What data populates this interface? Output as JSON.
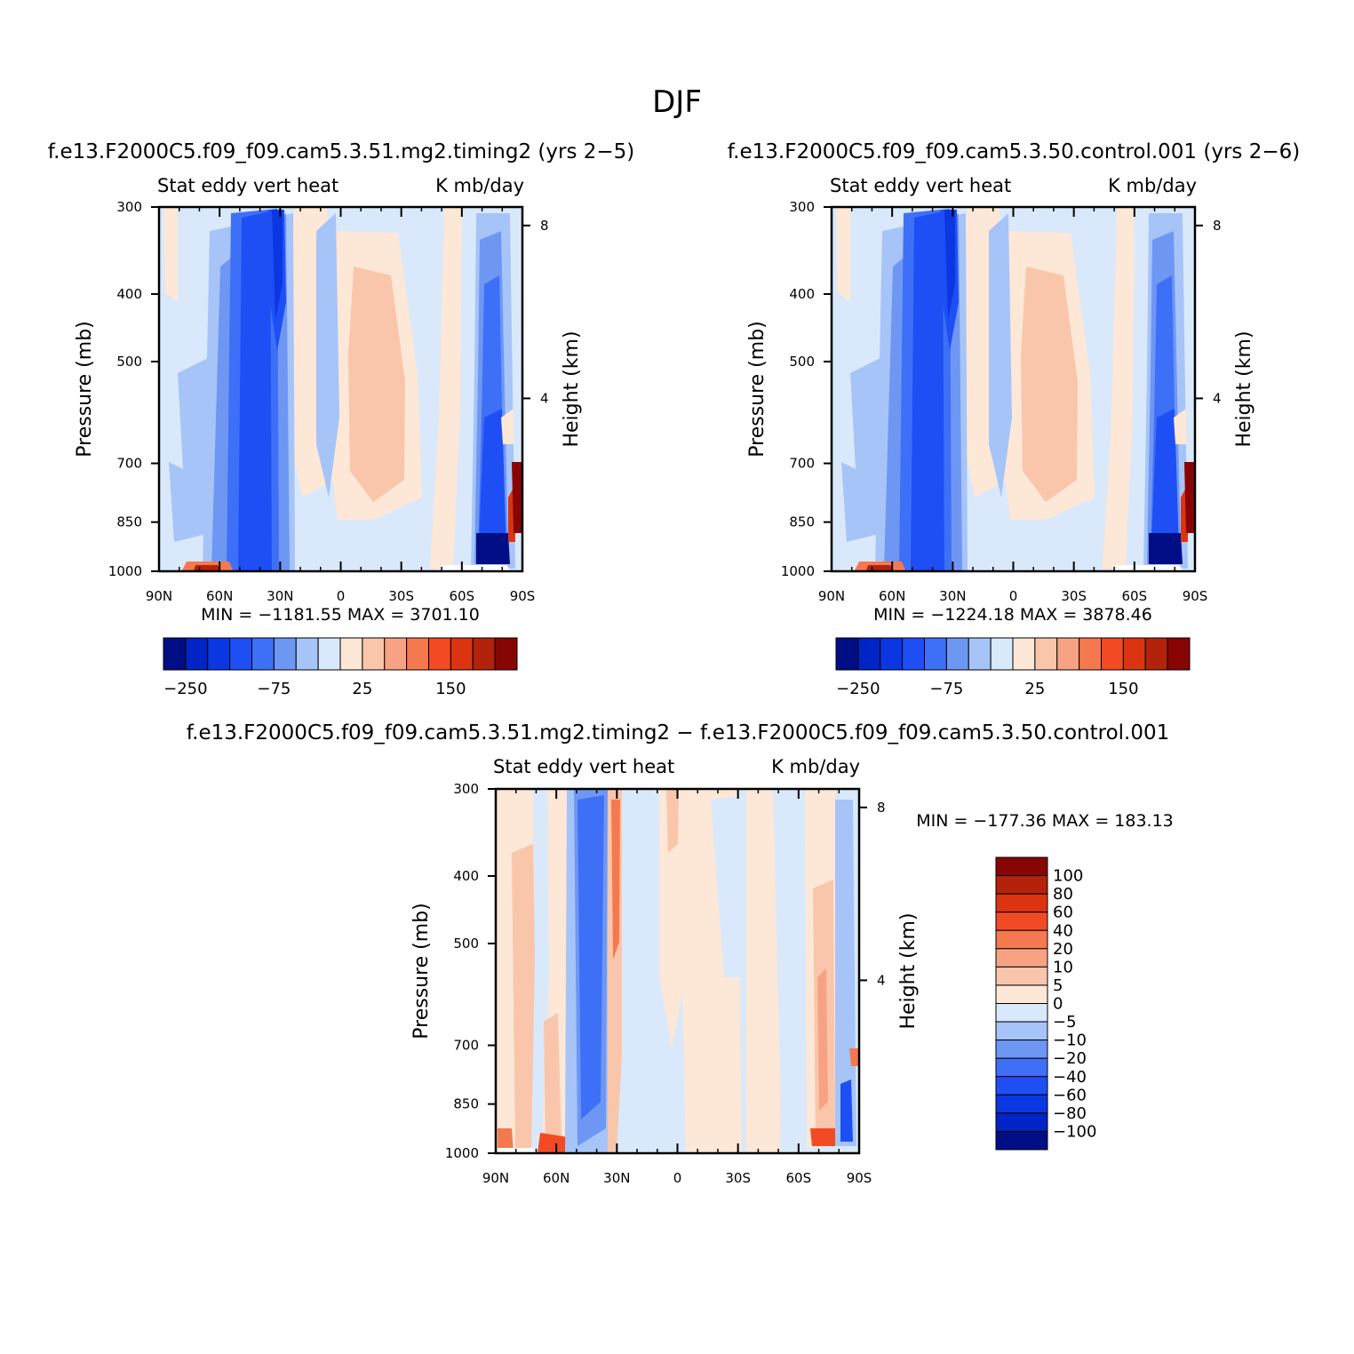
{
  "page_title": "DJF",
  "colors": {
    "scale": [
      "#000e86",
      "#0024c5",
      "#0a37e2",
      "#1e4ff5",
      "#3e6ff7",
      "#6e97f4",
      "#a6c4f8",
      "#d9e9fb",
      "#fde7d6",
      "#f9c6ac",
      "#f7a383",
      "#f5794f",
      "#f24b23",
      "#dc3410",
      "#b3230b",
      "#880505"
    ]
  },
  "chart_data": [
    {
      "id": "panel1",
      "type": "heatmap",
      "case_title": "f.e13.F2000C5.f09_f09.cam5.3.51.mg2.timing2 (yrs 2−5)",
      "left_string": "Stat eddy vert heat",
      "right_string": "K mb/day",
      "ylabel": "Pressure (mb)",
      "ylabel_right": "Height (km)",
      "x_ticks": [
        "90N",
        "60N",
        "30N",
        "0",
        "30S",
        "60S",
        "90S"
      ],
      "x_values": [
        90,
        60,
        30,
        0,
        -30,
        -60,
        -90
      ],
      "y_ticks": [
        "300",
        "400",
        "500",
        "700",
        "850",
        "1000"
      ],
      "y_values": [
        300,
        400,
        500,
        700,
        850,
        1000
      ],
      "ylim": [
        1000,
        300
      ],
      "height_ticks": [
        "8",
        "4"
      ],
      "height_values": [
        8,
        4
      ],
      "min_max": "MIN = −1181.55   MAX = 3701.10",
      "colorbar": {
        "orientation": "horizontal",
        "levels": [
          -250,
          -200,
          -150,
          -100,
          -75,
          -50,
          -25,
          0,
          25,
          50,
          75,
          100,
          150,
          200,
          250
        ],
        "shown_labels": [
          "−250",
          "−75",
          "25",
          "150"
        ]
      }
    },
    {
      "id": "panel2",
      "type": "heatmap",
      "case_title": "f.e13.F2000C5.f09_f09.cam5.3.50.control.001 (yrs 2−6)",
      "left_string": "Stat eddy vert heat",
      "right_string": "K mb/day",
      "ylabel": "Pressure (mb)",
      "ylabel_right": "Height (km)",
      "x_ticks": [
        "90N",
        "60N",
        "30N",
        "0",
        "30S",
        "60S",
        "90S"
      ],
      "x_values": [
        90,
        60,
        30,
        0,
        -30,
        -60,
        -90
      ],
      "y_ticks": [
        "300",
        "400",
        "500",
        "700",
        "850",
        "1000"
      ],
      "y_values": [
        300,
        400,
        500,
        700,
        850,
        1000
      ],
      "ylim": [
        1000,
        300
      ],
      "height_ticks": [
        "8",
        "4"
      ],
      "height_values": [
        8,
        4
      ],
      "min_max": "MIN = −1224.18   MAX = 3878.46",
      "colorbar": {
        "orientation": "horizontal",
        "levels": [
          -250,
          -200,
          -150,
          -100,
          -75,
          -50,
          -25,
          0,
          25,
          50,
          75,
          100,
          150,
          200,
          250
        ],
        "shown_labels": [
          "−250",
          "−75",
          "25",
          "150"
        ]
      }
    },
    {
      "id": "panel3",
      "type": "heatmap",
      "case_title": "f.e13.F2000C5.f09_f09.cam5.3.51.mg2.timing2 − f.e13.F2000C5.f09_f09.cam5.3.50.control.001",
      "left_string": "Stat eddy vert heat",
      "right_string": "K mb/day",
      "ylabel": "Pressure (mb)",
      "ylabel_right": "Height (km)",
      "x_ticks": [
        "90N",
        "60N",
        "30N",
        "0",
        "30S",
        "60S",
        "90S"
      ],
      "x_values": [
        90,
        60,
        30,
        0,
        -30,
        -60,
        -90
      ],
      "y_ticks": [
        "300",
        "400",
        "500",
        "700",
        "850",
        "1000"
      ],
      "y_values": [
        300,
        400,
        500,
        700,
        850,
        1000
      ],
      "ylim": [
        1000,
        300
      ],
      "height_ticks": [
        "8",
        "4"
      ],
      "height_values": [
        8,
        4
      ],
      "min_max": "MIN = −177.36   MAX = 183.13",
      "colorbar": {
        "orientation": "vertical",
        "levels": [
          100,
          80,
          60,
          40,
          20,
          10,
          5,
          0,
          -5,
          -10,
          -20,
          -40,
          -60,
          -80,
          -100
        ],
        "shown_labels": [
          "100",
          "80",
          "60",
          "40",
          "20",
          "10",
          "5",
          "0",
          "−5",
          "−10",
          "−20",
          "−40",
          "−60",
          "−80",
          "−100"
        ]
      }
    }
  ]
}
